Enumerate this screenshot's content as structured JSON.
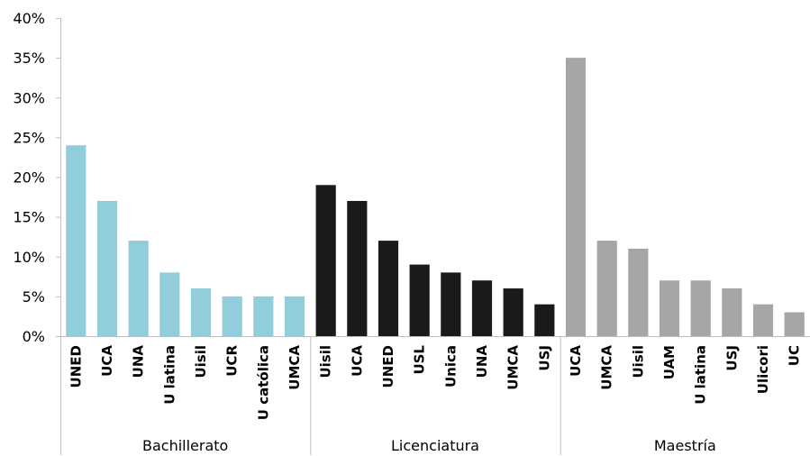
{
  "chart_data": {
    "type": "bar",
    "title": "",
    "xlabel": "",
    "ylabel": "",
    "ylim": [
      0,
      40
    ],
    "yticks": [
      0,
      5,
      10,
      15,
      20,
      25,
      30,
      35,
      40
    ],
    "ytick_labels": [
      "0%",
      "5%",
      "10%",
      "15%",
      "20%",
      "25%",
      "30%",
      "35%",
      "40%"
    ],
    "grid": false,
    "legend": "none",
    "groups": [
      {
        "name": "Bachillerato",
        "color": "#92CDDC",
        "categories": [
          "UNED",
          "UCA",
          "UNA",
          "U latina",
          "Uisil",
          "UCR",
          "U católica",
          "UMCA"
        ],
        "values": [
          24,
          17,
          12,
          8,
          6,
          5,
          5,
          5
        ]
      },
      {
        "name": "Licenciatura",
        "color": "#1A1A1A",
        "categories": [
          "Uisil",
          "UCA",
          "UNED",
          "USL",
          "Unica",
          "UNA",
          "UMCA",
          "USJ"
        ],
        "values": [
          19,
          17,
          12,
          9,
          8,
          7,
          6,
          4
        ]
      },
      {
        "name": "Maestría",
        "color": "#A6A6A6",
        "categories": [
          "UCA",
          "UMCA",
          "Uisil",
          "UAM",
          "U latina",
          "USJ",
          "Ulicori",
          "UC"
        ],
        "values": [
          35,
          12,
          11,
          7,
          7,
          6,
          4,
          3
        ]
      }
    ]
  }
}
